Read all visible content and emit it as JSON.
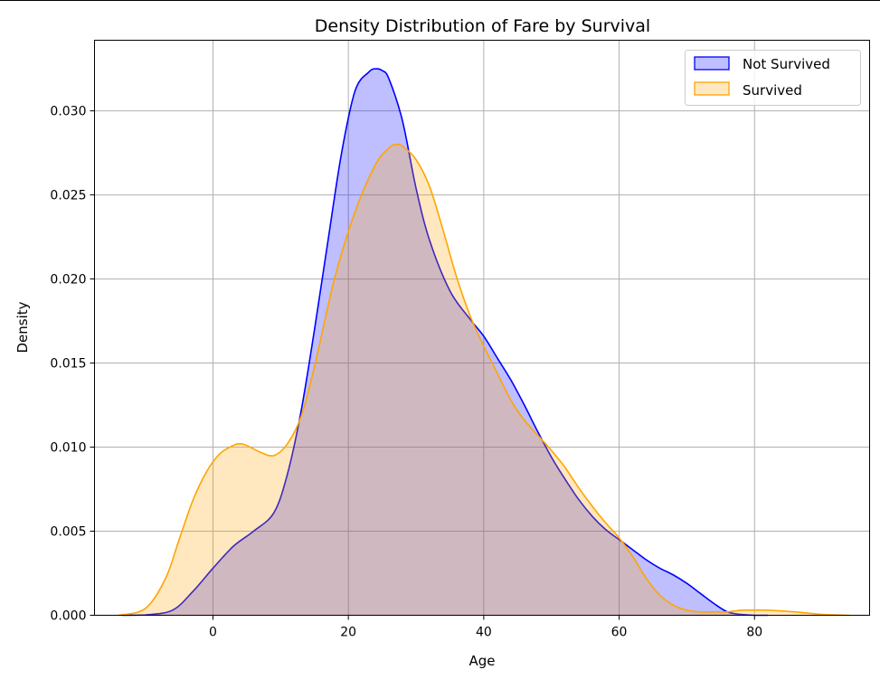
{
  "chart_data": {
    "type": "area",
    "title": "Density Distribution of Fare by Survival",
    "xlabel": "Age",
    "ylabel": "Density",
    "xlim": [
      -17.5,
      97
    ],
    "ylim": [
      0,
      0.0342
    ],
    "xticks": [
      0,
      20,
      40,
      60,
      80
    ],
    "yticks": [
      "0.000",
      "0.005",
      "0.010",
      "0.015",
      "0.020",
      "0.025",
      "0.030"
    ],
    "grid": true,
    "legend_position": "top-right",
    "series": [
      {
        "name": "Not Survived",
        "color": "#0000ff",
        "fill_opacity": 0.25,
        "x": [
          -13.5,
          -10,
          -6,
          -3,
          0,
          3,
          6,
          9,
          11,
          13,
          15,
          17,
          19,
          21,
          23,
          24,
          25,
          26,
          28,
          30,
          32,
          35,
          38,
          40,
          42,
          44,
          46,
          48,
          50,
          52,
          54,
          56,
          58,
          60,
          62,
          64,
          66,
          68,
          70,
          72,
          74,
          76,
          78,
          80,
          82
        ],
        "y": [
          0.0,
          2e-05,
          0.0003,
          0.0014,
          0.0028,
          0.0041,
          0.005,
          0.0061,
          0.0084,
          0.0121,
          0.017,
          0.0223,
          0.0275,
          0.0312,
          0.0323,
          0.0325,
          0.0324,
          0.0319,
          0.0294,
          0.0254,
          0.0223,
          0.0193,
          0.0176,
          0.0166,
          0.0153,
          0.014,
          0.0125,
          0.0109,
          0.0094,
          0.0081,
          0.0069,
          0.0059,
          0.0051,
          0.0045,
          0.0039,
          0.0033,
          0.0028,
          0.0024,
          0.0019,
          0.0013,
          0.0007,
          0.0002,
          5e-05,
          0.0,
          0.0
        ]
      },
      {
        "name": "Survived",
        "color": "#ffa500",
        "fill_opacity": 0.25,
        "x": [
          -14,
          -10,
          -7,
          -5,
          -3,
          -1,
          1,
          3,
          4,
          5,
          7,
          9,
          11,
          13,
          15,
          18,
          21,
          24,
          26,
          27,
          28,
          30,
          32,
          34,
          36,
          38,
          40,
          42,
          44,
          46,
          48,
          50,
          52,
          54,
          56,
          58,
          60,
          62,
          64,
          66,
          68,
          70,
          72,
          74,
          76,
          78,
          80,
          82,
          86,
          90,
          94
        ],
        "y": [
          0.0,
          0.0004,
          0.0022,
          0.0045,
          0.0068,
          0.0085,
          0.0096,
          0.0101,
          0.0102,
          0.0101,
          0.0097,
          0.0095,
          0.0102,
          0.0118,
          0.0148,
          0.0201,
          0.024,
          0.0268,
          0.0278,
          0.028,
          0.0279,
          0.0271,
          0.0255,
          0.0229,
          0.0201,
          0.0178,
          0.016,
          0.0144,
          0.0128,
          0.0116,
          0.0107,
          0.0098,
          0.0088,
          0.0076,
          0.0065,
          0.0055,
          0.0046,
          0.0035,
          0.0022,
          0.0012,
          0.0006,
          0.0003,
          0.0002,
          0.0002,
          0.0002,
          0.0003,
          0.0003,
          0.0003,
          0.0002,
          5e-05,
          0.0
        ]
      }
    ]
  }
}
